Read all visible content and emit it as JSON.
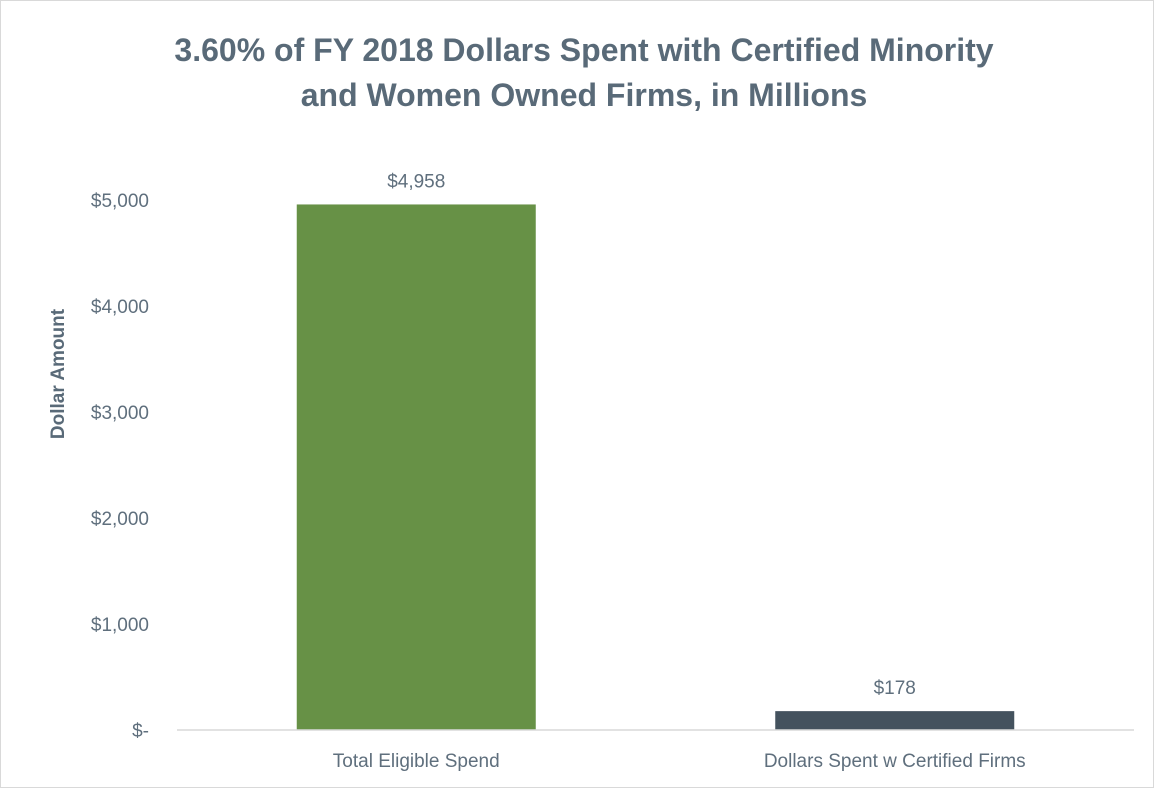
{
  "chart_data": {
    "type": "bar",
    "title": "3.60% of FY 2018 Dollars Spent with Certified Minority and Women Owned Firms, in Millions",
    "title_lines": [
      "3.60% of FY 2018 Dollars Spent with Certified Minority",
      "and Women Owned Firms, in Millions"
    ],
    "xlabel": "",
    "ylabel": "Dollar Amount",
    "categories": [
      "Total Eligible Spend",
      "Dollars Spent w Certified Firms"
    ],
    "values": [
      4958,
      178
    ],
    "data_labels": [
      "$4,958",
      "$178"
    ],
    "bar_colors": [
      "#679146",
      "#44525e"
    ],
    "ylim": [
      0,
      5000
    ],
    "yticks": [
      0,
      1000,
      2000,
      3000,
      4000,
      5000
    ],
    "ytick_labels": [
      "$-",
      "$1,000",
      "$2,000",
      "$3,000",
      "$4,000",
      "$5,000"
    ],
    "grid": false,
    "legend": "none"
  },
  "colors": {
    "title": "#596a78",
    "text": "#5f6f7d",
    "axis_line": "#d9d9d9",
    "frame": "#d9d9d9"
  }
}
